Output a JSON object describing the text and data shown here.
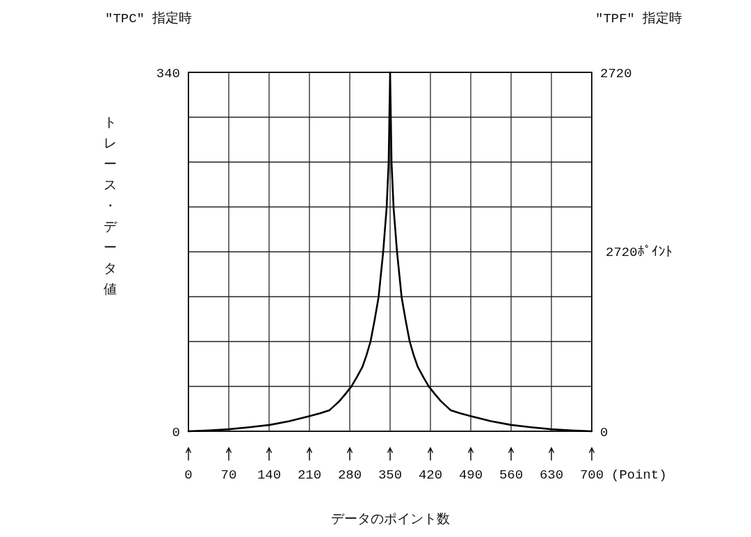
{
  "chart_data": {
    "type": "line",
    "xlabel": "データのポイント数",
    "ylabel": "トレース・データ値",
    "annotations": [
      "\"TPC\" 指定時",
      "\"TPF\" 指定時",
      "2720ﾎﾟｲﾝﾄ",
      "(Point)"
    ],
    "x": [
      0,
      35,
      70,
      105,
      141,
      175,
      210,
      228,
      245,
      262,
      272,
      283,
      292,
      302,
      309,
      316,
      323,
      330,
      338,
      344,
      347.5,
      350,
      352.5,
      356,
      362,
      370,
      377,
      384,
      391,
      398,
      408,
      417,
      428,
      438,
      455,
      472,
      490,
      525,
      560,
      595,
      630,
      665,
      700
    ],
    "series": [
      {
        "color": "#000000",
        "values": [
          0,
          0.8,
          1.9,
          3.8,
          6,
          9.5,
          14.3,
          17,
          20,
          28.6,
          35,
          42.6,
          51,
          61,
          72,
          85,
          105,
          127,
          170,
          212,
          255,
          340,
          255,
          212,
          170,
          127,
          105,
          85,
          72,
          61,
          51,
          42.6,
          35,
          28.6,
          20,
          17,
          14.3,
          9.5,
          6,
          3.8,
          1.9,
          0.8,
          0
        ]
      }
    ],
    "xlim": [
      0,
      700
    ],
    "xticks": [
      0,
      70,
      140,
      210,
      280,
      350,
      420,
      490,
      560,
      630,
      700
    ],
    "ylim": [
      0,
      340
    ],
    "yticks": [
      0,
      {
        "value": 42.5,
        "label": null
      },
      {
        "value": 85,
        "label": null
      },
      {
        "value": 127.5,
        "label": null
      },
      {
        "value": 170,
        "label": null
      },
      {
        "value": 212.5,
        "label": null
      },
      {
        "value": 255,
        "label": null
      },
      {
        "value": 297.5,
        "label": null
      },
      340
    ],
    "y2lim": [
      0,
      2720
    ],
    "y2ticks": [
      0,
      2720
    ],
    "grid": true
  }
}
